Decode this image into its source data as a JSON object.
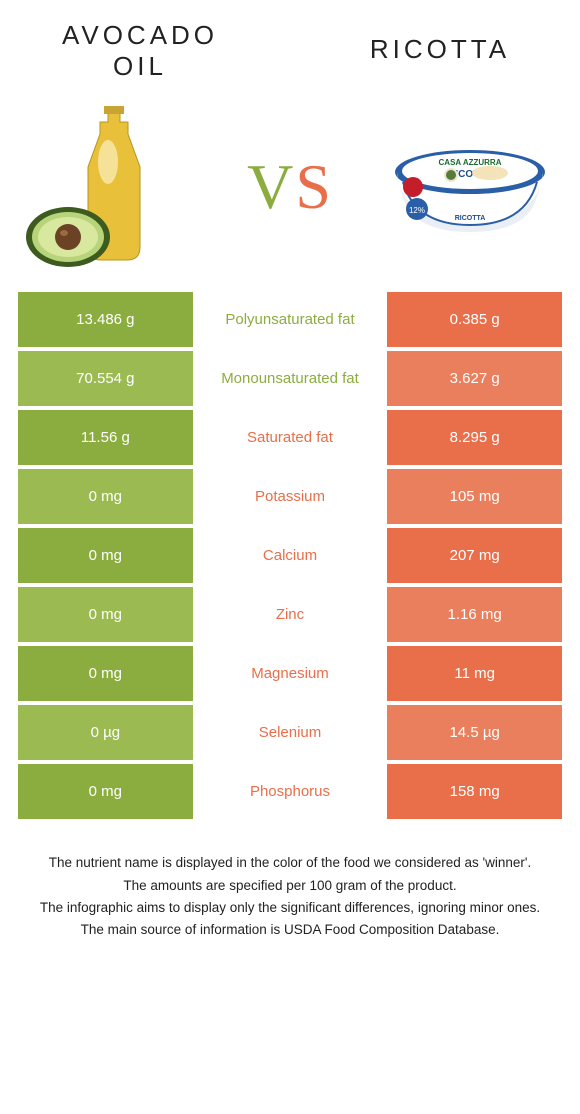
{
  "colors": {
    "left_food": "#8bad3f",
    "right_food": "#e86f4a",
    "left_cell_alt1": "#8bad3f",
    "left_cell_alt2": "#9bbb52",
    "right_cell_alt1": "#e86f4a",
    "right_cell_alt2": "#ea7f5d",
    "text_white": "#ffffff"
  },
  "header": {
    "left_title_line1": "Avocado",
    "left_title_line2": "oil",
    "right_title": "Ricotta"
  },
  "vs": {
    "v": "V",
    "s": "S"
  },
  "rows": [
    {
      "left": "13.486 g",
      "label": "Polyunsaturated fat",
      "right": "0.385 g",
      "winner": "left"
    },
    {
      "left": "70.554 g",
      "label": "Monounsaturated fat",
      "right": "3.627 g",
      "winner": "left"
    },
    {
      "left": "11.56 g",
      "label": "Saturated fat",
      "right": "8.295 g",
      "winner": "right"
    },
    {
      "left": "0 mg",
      "label": "Potassium",
      "right": "105 mg",
      "winner": "right"
    },
    {
      "left": "0 mg",
      "label": "Calcium",
      "right": "207 mg",
      "winner": "right"
    },
    {
      "left": "0 mg",
      "label": "Zinc",
      "right": "1.16 mg",
      "winner": "right"
    },
    {
      "left": "0 mg",
      "label": "Magnesium",
      "right": "11 mg",
      "winner": "right"
    },
    {
      "left": "0 µg",
      "label": "Selenium",
      "right": "14.5 µg",
      "winner": "right"
    },
    {
      "left": "0 mg",
      "label": "Phosphorus",
      "right": "158 mg",
      "winner": "right"
    }
  ],
  "footnotes": {
    "l1": "The nutrient name is displayed in the color of the food we considered as 'winner'.",
    "l2": "The amounts are specified per 100 gram of the product.",
    "l3": "The infographic aims to display only the significant differences, ignoring minor ones.",
    "l4": "The main source of information is USDA Food Composition Database."
  }
}
